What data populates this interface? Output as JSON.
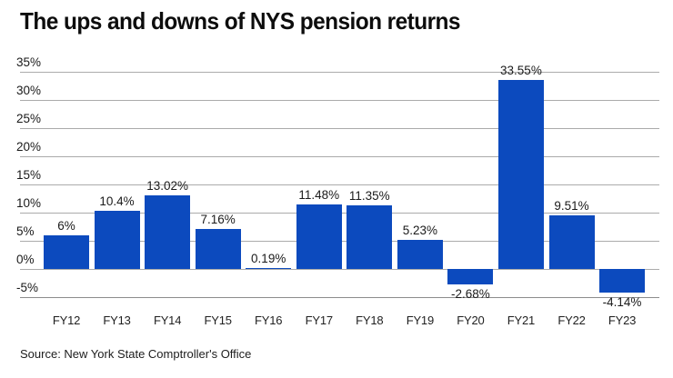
{
  "page": {
    "title": "The ups and downs of NYS pension returns",
    "source": "Source: New York State Comptroller's Office"
  },
  "chart_data": {
    "type": "bar",
    "title": "The ups and downs of NYS pension returns",
    "categories": [
      "FY12",
      "FY13",
      "FY14",
      "FY15",
      "FY16",
      "FY17",
      "FY18",
      "FY19",
      "FY20",
      "FY21",
      "FY22",
      "FY23"
    ],
    "values": [
      6,
      10.4,
      13.02,
      7.16,
      0.19,
      11.48,
      11.35,
      5.23,
      -2.68,
      33.55,
      9.51,
      -4.14
    ],
    "value_labels": [
      "6%",
      "10.4%",
      "13.02%",
      "7.16%",
      "0.19%",
      "11.48%",
      "11.35%",
      "5.23%",
      "-2.68%",
      "33.55%",
      "9.51%",
      "-4.14%"
    ],
    "xlabel": "",
    "ylabel": "",
    "ylim": [
      -5,
      35
    ],
    "yticks": [
      35,
      30,
      25,
      20,
      15,
      10,
      5,
      0,
      -5
    ],
    "ytick_labels": [
      "35%",
      "30%",
      "25%",
      "20%",
      "15%",
      "10%",
      "5%",
      "0%",
      "-5%"
    ],
    "grid": true,
    "legend": false,
    "colors": {
      "bar": "#0c4abe",
      "gridline": "#ababab",
      "bottom_line": "#8c8c8c",
      "text": "#1a1a1a"
    }
  }
}
